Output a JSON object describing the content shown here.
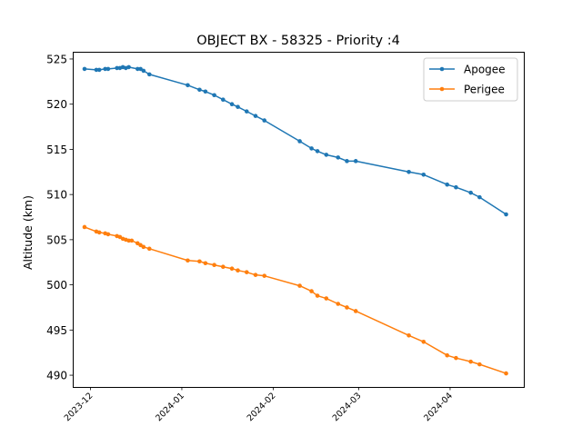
{
  "chart_data": {
    "type": "line",
    "title": "OBJECT BX - 58325 - Priority :4",
    "xlabel": "",
    "ylabel": "Altitude (km)",
    "ylim": [
      488.7,
      525.8
    ],
    "xlim": [
      "2023-11-25",
      "2024-04-26"
    ],
    "x_ticks": [
      "2023-12",
      "2024-01",
      "2024-02",
      "2024-03",
      "2024-04"
    ],
    "y_ticks": [
      490,
      495,
      500,
      505,
      510,
      515,
      520,
      525
    ],
    "grid": false,
    "legend_position": "top-right",
    "series": [
      {
        "name": "Apogee",
        "color": "#1f77b4",
        "points": [
          [
            "2023-11-29",
            523.9
          ],
          [
            "2023-12-03",
            523.8
          ],
          [
            "2023-12-04",
            523.8
          ],
          [
            "2023-12-06",
            523.9
          ],
          [
            "2023-12-07",
            523.9
          ],
          [
            "2023-12-10",
            524.0
          ],
          [
            "2023-12-11",
            524.0
          ],
          [
            "2023-12-12",
            524.1
          ],
          [
            "2023-12-13",
            524.0
          ],
          [
            "2023-12-14",
            524.1
          ],
          [
            "2023-12-17",
            523.9
          ],
          [
            "2023-12-18",
            523.9
          ],
          [
            "2023-12-19",
            523.7
          ],
          [
            "2023-12-21",
            523.3
          ],
          [
            "2024-01-03",
            522.1
          ],
          [
            "2024-01-07",
            521.6
          ],
          [
            "2024-01-09",
            521.4
          ],
          [
            "2024-01-12",
            521.0
          ],
          [
            "2024-01-15",
            520.5
          ],
          [
            "2024-01-18",
            520.0
          ],
          [
            "2024-01-20",
            519.7
          ],
          [
            "2024-01-23",
            519.2
          ],
          [
            "2024-01-26",
            518.7
          ],
          [
            "2024-01-29",
            518.2
          ],
          [
            "2024-02-10",
            515.9
          ],
          [
            "2024-02-14",
            515.1
          ],
          [
            "2024-02-16",
            514.8
          ],
          [
            "2024-02-19",
            514.4
          ],
          [
            "2024-02-23",
            514.1
          ],
          [
            "2024-02-26",
            513.7
          ],
          [
            "2024-02-29",
            513.7
          ],
          [
            "2024-03-18",
            512.5
          ],
          [
            "2024-03-23",
            512.2
          ],
          [
            "2024-03-31",
            511.1
          ],
          [
            "2024-04-03",
            510.8
          ],
          [
            "2024-04-08",
            510.2
          ],
          [
            "2024-04-11",
            509.7
          ],
          [
            "2024-04-20",
            507.8
          ]
        ]
      },
      {
        "name": "Perigee",
        "color": "#ff7f0e",
        "points": [
          [
            "2023-11-29",
            506.4
          ],
          [
            "2023-12-03",
            505.9
          ],
          [
            "2023-12-04",
            505.8
          ],
          [
            "2023-12-06",
            505.7
          ],
          [
            "2023-12-07",
            505.6
          ],
          [
            "2023-12-10",
            505.4
          ],
          [
            "2023-12-11",
            505.3
          ],
          [
            "2023-12-12",
            505.1
          ],
          [
            "2023-12-13",
            505.0
          ],
          [
            "2023-12-14",
            504.9
          ],
          [
            "2023-12-15",
            504.9
          ],
          [
            "2023-12-17",
            504.6
          ],
          [
            "2023-12-18",
            504.4
          ],
          [
            "2023-12-19",
            504.2
          ],
          [
            "2023-12-21",
            504.0
          ],
          [
            "2024-01-03",
            502.7
          ],
          [
            "2024-01-07",
            502.6
          ],
          [
            "2024-01-09",
            502.4
          ],
          [
            "2024-01-12",
            502.2
          ],
          [
            "2024-01-15",
            502.0
          ],
          [
            "2024-01-18",
            501.8
          ],
          [
            "2024-01-20",
            501.6
          ],
          [
            "2024-01-23",
            501.4
          ],
          [
            "2024-01-26",
            501.1
          ],
          [
            "2024-01-29",
            501.0
          ],
          [
            "2024-02-10",
            499.9
          ],
          [
            "2024-02-14",
            499.3
          ],
          [
            "2024-02-16",
            498.8
          ],
          [
            "2024-02-19",
            498.5
          ],
          [
            "2024-02-23",
            497.9
          ],
          [
            "2024-02-26",
            497.5
          ],
          [
            "2024-02-29",
            497.1
          ],
          [
            "2024-03-18",
            494.4
          ],
          [
            "2024-03-23",
            493.7
          ],
          [
            "2024-03-31",
            492.2
          ],
          [
            "2024-04-03",
            491.9
          ],
          [
            "2024-04-08",
            491.5
          ],
          [
            "2024-04-11",
            491.2
          ],
          [
            "2024-04-20",
            490.2
          ]
        ]
      }
    ]
  }
}
